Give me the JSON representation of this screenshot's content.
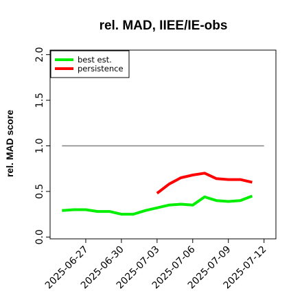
{
  "chart_data": {
    "type": "line",
    "title": "rel. MAD, IIEE/IE-obs",
    "xlabel": "",
    "ylabel": "rel. MAD score",
    "x": [
      "2025-06-25",
      "2025-06-26",
      "2025-06-27",
      "2025-06-28",
      "2025-06-29",
      "2025-06-30",
      "2025-07-01",
      "2025-07-02",
      "2025-07-03",
      "2025-07-04",
      "2025-07-05",
      "2025-07-06",
      "2025-07-07",
      "2025-07-08",
      "2025-07-09",
      "2025-07-10",
      "2025-07-11",
      "2025-07-12"
    ],
    "xticks": [
      "2025-06-27",
      "2025-06-30",
      "2025-07-03",
      "2025-07-06",
      "2025-07-09",
      "2025-07-12"
    ],
    "xlim": [
      "2025-06-24",
      "2025-07-13"
    ],
    "ylim": [
      -0.02,
      2.05
    ],
    "yticks": [
      "0.0",
      "0.5",
      "1.0",
      "1.5",
      "2.0"
    ],
    "reference_line": {
      "value": 1.0,
      "from": "2025-06-25",
      "to": "2025-07-12",
      "color": "#808080"
    },
    "series": [
      {
        "name": "best est.",
        "color": "#00ee00",
        "values": [
          0.29,
          0.3,
          0.3,
          0.28,
          0.28,
          0.25,
          0.25,
          0.29,
          0.32,
          0.35,
          0.36,
          0.35,
          0.44,
          0.4,
          0.39,
          0.4,
          0.45,
          null
        ]
      },
      {
        "name": "persistence",
        "color": "#ff0000",
        "values": [
          null,
          null,
          null,
          null,
          null,
          null,
          null,
          null,
          0.48,
          0.58,
          0.65,
          0.68,
          0.7,
          0.64,
          0.63,
          0.63,
          0.6,
          null
        ]
      }
    ],
    "legend": {
      "position": "top-left",
      "entries": [
        "best est.",
        "persistence"
      ]
    },
    "grid": false
  }
}
